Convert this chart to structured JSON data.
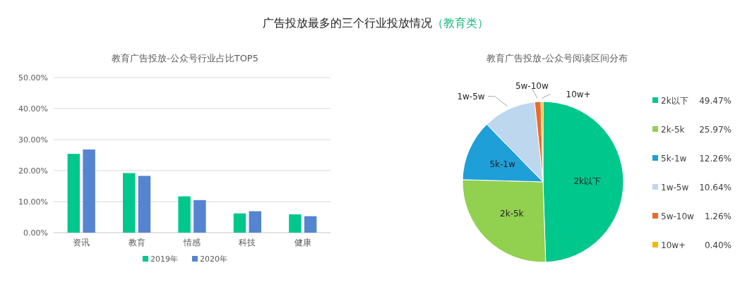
{
  "chart_data": [
    {
      "type": "other",
      "title": "广告投放最多的三个行业投放情况",
      "subtitle": "（教育类）"
    },
    {
      "type": "bar",
      "title": "教育广告投放-公众号行业占比TOP5",
      "categories": [
        "资讯",
        "教育",
        "情感",
        "科技",
        "健康"
      ],
      "series": [
        {
          "name": "2019年",
          "color": "#00c78c",
          "values": [
            25.4,
            19.2,
            11.7,
            6.2,
            5.9
          ]
        },
        {
          "name": "2020年",
          "color": "#5584d0",
          "values": [
            26.8,
            18.3,
            10.5,
            6.9,
            5.3
          ]
        }
      ],
      "ylim": [
        0,
        50
      ],
      "yticks": [
        {
          "value": 0,
          "label": "0.00%"
        },
        {
          "value": 10,
          "label": "10.00%"
        },
        {
          "value": 20,
          "label": "20.00%"
        },
        {
          "value": 30,
          "label": "30.00%"
        },
        {
          "value": 40,
          "label": "40.00%"
        },
        {
          "value": 50,
          "label": "50.00%"
        }
      ],
      "grid": "y",
      "legend": "bottom"
    },
    {
      "type": "pie",
      "title": "教育广告投放-公众号阅读区间分布",
      "categories": [
        "2k以下",
        "2k-5k",
        "5k-1w",
        "1w-5w",
        "5w-10w",
        "10w+"
      ],
      "values": [
        49.47,
        25.97,
        12.26,
        10.64,
        1.26,
        0.4
      ],
      "value_labels": [
        "49.47%",
        "25.97%",
        "12.26%",
        "10.64%",
        "1.26%",
        "0.40%"
      ],
      "colors": [
        "#00c78c",
        "#92d050",
        "#1f9fd8",
        "#bdd7ee",
        "#ed6a2b",
        "#f5b800"
      ],
      "legend": "right"
    }
  ]
}
